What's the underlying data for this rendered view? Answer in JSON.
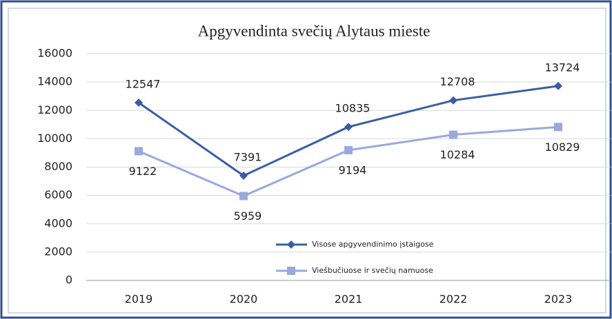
{
  "chart_data": {
    "type": "line",
    "title": "Apgyvendinta svečių Alytaus mieste",
    "categories": [
      "2019",
      "2020",
      "2021",
      "2022",
      "2023"
    ],
    "series": [
      {
        "name": "Visose apgyvendinimo įstaigose",
        "color": "#3b5ca6",
        "marker": "diamond",
        "values": [
          12547,
          7391,
          10835,
          12708,
          13724
        ]
      },
      {
        "name": "Viešbučiuose ir svečių namuose",
        "color": "#9aa8dc",
        "marker": "square",
        "values": [
          9122,
          5959,
          9194,
          10284,
          10829
        ]
      }
    ],
    "ylim": [
      0,
      16000
    ],
    "yticks": [
      0,
      2000,
      4000,
      6000,
      8000,
      10000,
      12000,
      14000,
      16000
    ],
    "grid": true,
    "legend": "bottom"
  }
}
